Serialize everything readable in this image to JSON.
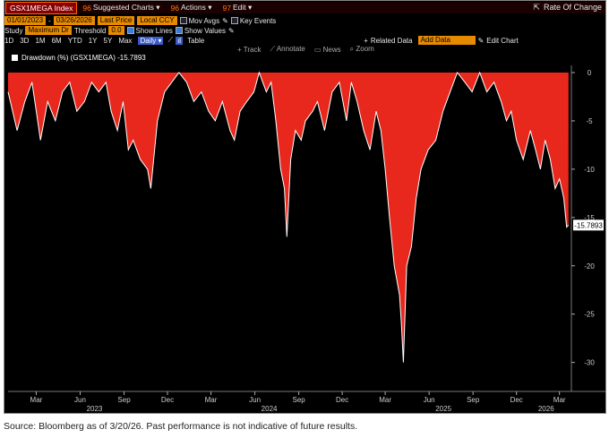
{
  "toolbar": {
    "ticker": "GSX1MEGA Index",
    "suggested": {
      "num": "96",
      "label": "Suggested Charts ▾"
    },
    "actions": {
      "num": "96",
      "label": "Actions ▾"
    },
    "edit": {
      "num": "97",
      "label": "Edit ▾"
    },
    "rate_of_change": "Rate Of Change",
    "start_date": "01/01/2023",
    "end_date": "03/26/2026",
    "price_field": "Last Price",
    "currency": "Local CCY",
    "mov_avgs": "Mov Avgs",
    "key_events": "Key Events",
    "study_label": "Study",
    "study_value": "Maximum Dr",
    "threshold_label": "Threshold",
    "threshold_value": "0.0",
    "show_lines": "Show Lines",
    "show_values": "Show Values",
    "periods": [
      "1D",
      "3D",
      "1M",
      "6M",
      "YTD",
      "1Y",
      "5Y",
      "Max"
    ],
    "frequency": "Daily ▾",
    "table": "Table",
    "related_data": "Related Data",
    "add_data": "Add Data",
    "edit_chart": "Edit Chart",
    "tools": [
      "Track",
      "Annotate",
      "News",
      "Zoom"
    ]
  },
  "colors": {
    "fill": "#e8281c",
    "line": "#ffffff",
    "background": "#000000",
    "accent": "#e68a00"
  },
  "source_note": "Source: Bloomberg as of 3/20/26. Past performance is not indicative of future results.",
  "chart_data": {
    "type": "area",
    "legend": "Drawdown (%) (GSX1MEGA) -15.7893",
    "last_value_label": "-15.7893",
    "ylim": [
      -33,
      0
    ],
    "yticks": [
      0,
      -5,
      -10,
      -15,
      -20,
      -25,
      -30
    ],
    "ytick_labels": [
      "0",
      "-5",
      "-10",
      "-15",
      "-20",
      "-25",
      "-30"
    ],
    "xlim": [
      "2023-01-01",
      "2026-03-26"
    ],
    "month_ticks": [
      {
        "label": "Mar",
        "date": "2023-03-01"
      },
      {
        "label": "Jun",
        "date": "2023-06-01"
      },
      {
        "label": "Sep",
        "date": "2023-09-01"
      },
      {
        "label": "Dec",
        "date": "2023-12-01"
      },
      {
        "label": "Mar",
        "date": "2024-03-01"
      },
      {
        "label": "Jun",
        "date": "2024-06-01"
      },
      {
        "label": "Sep",
        "date": "2024-09-01"
      },
      {
        "label": "Dec",
        "date": "2024-12-01"
      },
      {
        "label": "Mar",
        "date": "2025-03-01"
      },
      {
        "label": "Jun",
        "date": "2025-06-01"
      },
      {
        "label": "Sep",
        "date": "2025-09-01"
      },
      {
        "label": "Dec",
        "date": "2025-12-01"
      },
      {
        "label": "Mar",
        "date": "2026-03-01"
      }
    ],
    "year_ticks": [
      {
        "label": "2023",
        "date": "2023-07-01"
      },
      {
        "label": "2024",
        "date": "2024-07-01"
      },
      {
        "label": "2025",
        "date": "2025-07-01"
      },
      {
        "label": "2026",
        "date": "2026-02-01"
      }
    ],
    "series": [
      {
        "x": [
          "2023-01-01",
          "2023-01-20",
          "2023-02-05",
          "2023-02-20",
          "2023-03-01",
          "2023-03-10",
          "2023-03-25",
          "2023-04-10",
          "2023-04-25",
          "2023-05-10",
          "2023-05-25",
          "2023-06-10",
          "2023-06-25",
          "2023-07-10",
          "2023-07-25",
          "2023-08-05",
          "2023-08-18",
          "2023-08-30",
          "2023-09-10",
          "2023-09-20",
          "2023-10-05",
          "2023-10-20",
          "2023-10-27",
          "2023-11-10",
          "2023-11-25",
          "2023-12-10",
          "2023-12-25",
          "2024-01-10",
          "2024-01-25",
          "2024-02-10",
          "2024-02-25",
          "2024-03-10",
          "2024-03-25",
          "2024-04-10",
          "2024-04-19",
          "2024-05-01",
          "2024-05-15",
          "2024-05-30",
          "2024-06-10",
          "2024-06-25",
          "2024-07-05",
          "2024-07-15",
          "2024-07-25",
          "2024-08-02",
          "2024-08-07",
          "2024-08-15",
          "2024-08-25",
          "2024-09-06",
          "2024-09-15",
          "2024-09-30",
          "2024-10-10",
          "2024-10-25",
          "2024-11-10",
          "2024-11-25",
          "2024-12-10",
          "2024-12-20",
          "2025-01-01",
          "2025-01-15",
          "2025-01-28",
          "2025-02-10",
          "2025-02-20",
          "2025-03-01",
          "2025-03-10",
          "2025-03-20",
          "2025-03-31",
          "2025-04-04",
          "2025-04-08",
          "2025-04-15",
          "2025-04-25",
          "2025-05-05",
          "2025-05-15",
          "2025-05-30",
          "2025-06-15",
          "2025-06-30",
          "2025-07-15",
          "2025-07-30",
          "2025-08-15",
          "2025-08-30",
          "2025-09-15",
          "2025-09-30",
          "2025-10-15",
          "2025-10-30",
          "2025-11-10",
          "2025-11-20",
          "2025-12-01",
          "2025-12-15",
          "2025-12-30",
          "2026-01-10",
          "2026-01-20",
          "2026-01-30",
          "2026-02-10",
          "2026-02-20",
          "2026-03-01",
          "2026-03-10",
          "2026-03-16",
          "2026-03-20"
        ],
        "y": [
          -2,
          -6,
          -3,
          -1,
          -4,
          -7,
          -3,
          -5,
          -2,
          -1,
          -4,
          -3,
          -1,
          -2,
          -1,
          -4,
          -6,
          -3,
          -8,
          -7,
          -9,
          -10,
          -12,
          -5,
          -2,
          -1,
          0,
          -1,
          -3,
          -2,
          -4,
          -5,
          -3,
          -6,
          -7,
          -4,
          -3,
          -2,
          0,
          -2,
          -1,
          -5,
          -10,
          -12,
          -17,
          -9,
          -6,
          -7,
          -5,
          -4,
          -3,
          -6,
          -2,
          -1,
          -5,
          -1,
          -3,
          -6,
          -8,
          -4,
          -6,
          -10,
          -15,
          -20,
          -23,
          -26,
          -30,
          -20,
          -18,
          -13,
          -10,
          -8,
          -7,
          -4,
          -2,
          0,
          -1,
          -2,
          0,
          -2,
          -1,
          -3,
          -5,
          -4,
          -7,
          -9,
          -6,
          -8,
          -10,
          -7,
          -9,
          -12,
          -11,
          -13,
          -16,
          -15.7893
        ]
      }
    ]
  }
}
